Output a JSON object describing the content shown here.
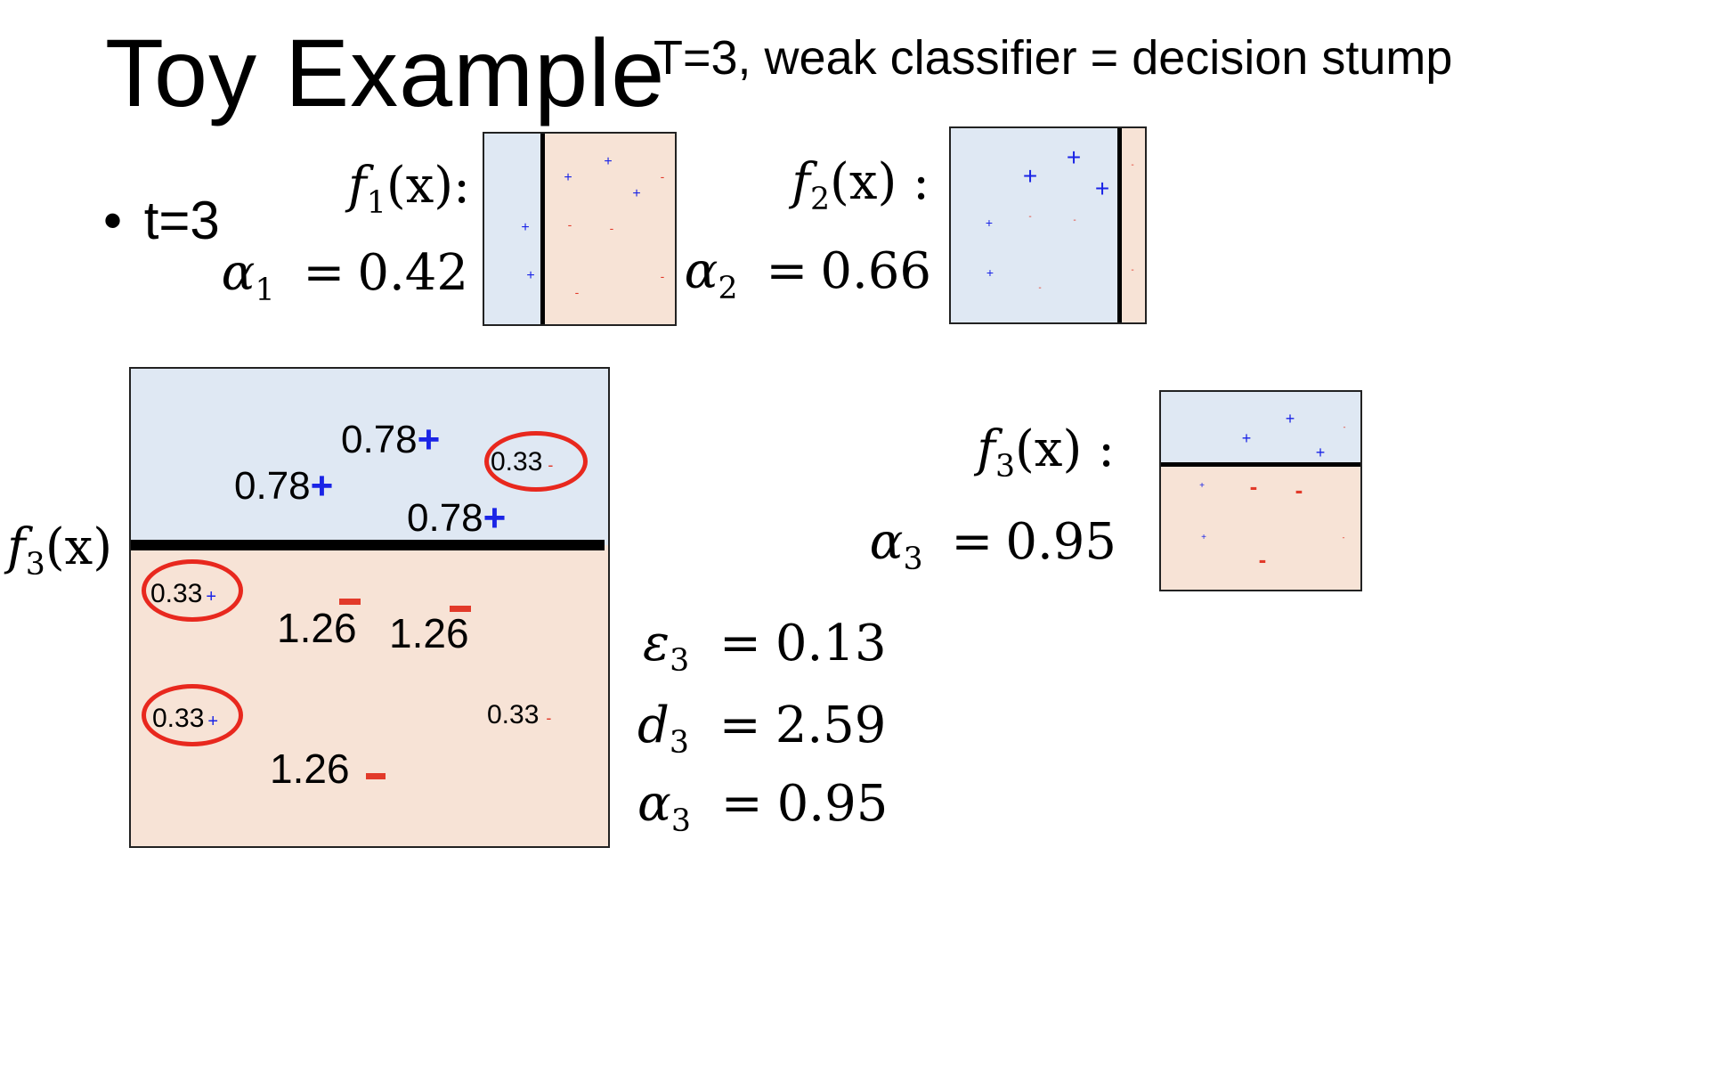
{
  "title": "Toy Example",
  "subtitle": "T=3, weak classifier = decision stump",
  "bullet": "t=3",
  "f_symbol": "f",
  "alpha_symbol": "α",
  "epsilon_symbol": "ε",
  "d_symbol": "d",
  "equals": "=",
  "classifiers": [
    {
      "index": "1",
      "x_label": "(x):",
      "alpha_value": "0.42"
    },
    {
      "index": "2",
      "x_label": "(x) :",
      "alpha_value": "0.66"
    },
    {
      "index": "3",
      "x_label": "(x) :",
      "alpha_value": "0.95"
    }
  ],
  "main_diagram": {
    "boundary_label_index": "3",
    "boundary_label_x": "(x)",
    "weights": [
      {
        "value": "0.78",
        "label": "+",
        "correct": true
      },
      {
        "value": "0.78",
        "label": "+",
        "correct": true
      },
      {
        "value": "0.78",
        "label": "+",
        "correct": true
      },
      {
        "value": "0.33",
        "label": "-",
        "correct": false
      },
      {
        "value": "0.33",
        "label": "+",
        "correct": false
      },
      {
        "value": "1.26",
        "label": "-",
        "correct": true
      },
      {
        "value": "1.26",
        "label": "-",
        "correct": true
      },
      {
        "value": "0.33",
        "label": "+",
        "correct": false
      },
      {
        "value": "0.33",
        "label": "-",
        "correct": true
      },
      {
        "value": "1.26",
        "label": "-",
        "correct": true
      }
    ]
  },
  "stats": {
    "index": "3",
    "epsilon": "0.13",
    "d": "2.59",
    "alpha": "0.95"
  },
  "colors": {
    "positive": "#1a24e6",
    "negative": "#e23a2a",
    "positive_region": "#dfe8f3",
    "negative_region": "#f7e3d6",
    "highlight_ring": "#e8281e"
  }
}
